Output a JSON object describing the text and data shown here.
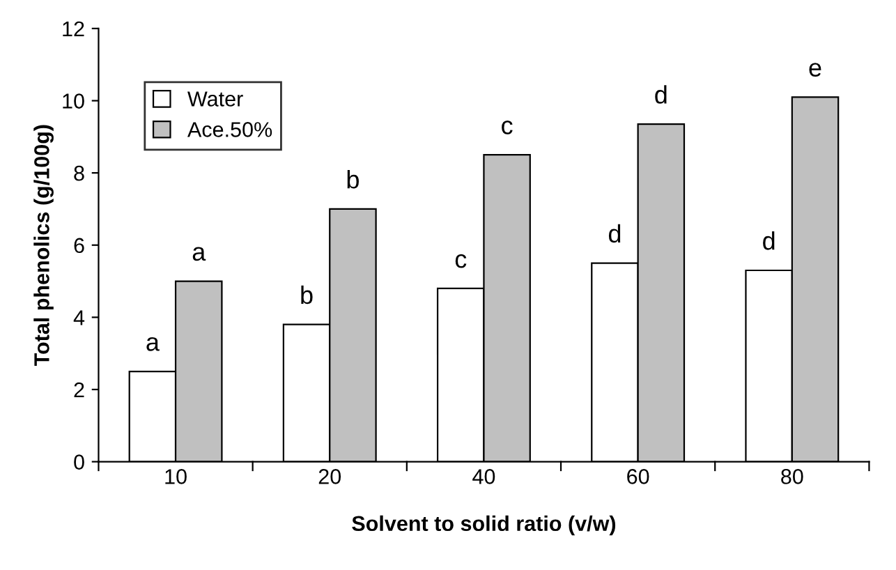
{
  "chart_data": {
    "type": "bar",
    "xlabel": "Solvent to solid ratio (v/w)",
    "ylabel": "Total phenolics (g/100g)",
    "categories": [
      "10",
      "20",
      "40",
      "60",
      "80"
    ],
    "series": [
      {
        "name": "Water",
        "color": "#ffffff",
        "values": [
          2.5,
          3.8,
          4.8,
          5.5,
          5.3
        ],
        "value_labels": [
          "a",
          "b",
          "c",
          "d",
          "d"
        ]
      },
      {
        "name": "Ace.50%",
        "color": "#c0c0c0",
        "values": [
          5.0,
          7.0,
          8.5,
          9.35,
          10.1
        ],
        "value_labels": [
          "a",
          "b",
          "c",
          "d",
          "e"
        ]
      }
    ],
    "ylim": [
      0,
      12
    ],
    "yticks": [
      0,
      2,
      4,
      6,
      8,
      10,
      12
    ],
    "grid": false,
    "legend": "top left"
  }
}
